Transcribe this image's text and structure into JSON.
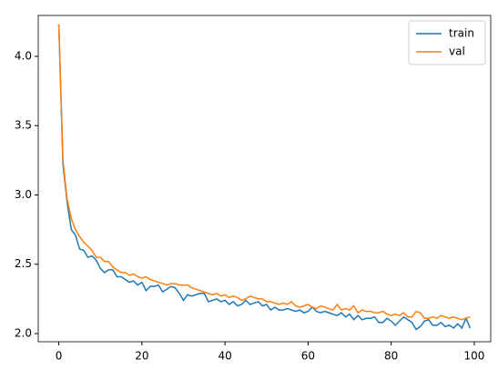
{
  "chart_data": {
    "type": "line",
    "x": [
      0,
      1,
      2,
      3,
      4,
      5,
      6,
      7,
      8,
      9,
      10,
      11,
      12,
      13,
      14,
      15,
      16,
      17,
      18,
      19,
      20,
      21,
      22,
      23,
      24,
      25,
      26,
      27,
      28,
      29,
      30,
      31,
      32,
      33,
      34,
      35,
      36,
      37,
      38,
      39,
      40,
      41,
      42,
      43,
      44,
      45,
      46,
      47,
      48,
      49,
      50,
      51,
      52,
      53,
      54,
      55,
      56,
      57,
      58,
      59,
      60,
      61,
      62,
      63,
      64,
      65,
      66,
      67,
      68,
      69,
      70,
      71,
      72,
      73,
      74,
      75,
      76,
      77,
      78,
      79,
      80,
      81,
      82,
      83,
      84,
      85,
      86,
      87,
      88,
      89,
      90,
      91,
      92,
      93,
      94,
      95,
      96,
      97,
      98,
      99
    ],
    "series": [
      {
        "name": "train",
        "color": "#1f77b4",
        "values": [
          4.23,
          3.22,
          2.95,
          2.75,
          2.71,
          2.61,
          2.6,
          2.55,
          2.56,
          2.53,
          2.47,
          2.44,
          2.46,
          2.46,
          2.41,
          2.41,
          2.39,
          2.37,
          2.38,
          2.35,
          2.37,
          2.31,
          2.34,
          2.34,
          2.35,
          2.3,
          2.32,
          2.34,
          2.33,
          2.29,
          2.24,
          2.28,
          2.27,
          2.28,
          2.29,
          2.29,
          2.23,
          2.24,
          2.25,
          2.23,
          2.24,
          2.21,
          2.23,
          2.2,
          2.21,
          2.24,
          2.21,
          2.22,
          2.23,
          2.2,
          2.21,
          2.17,
          2.19,
          2.17,
          2.17,
          2.18,
          2.17,
          2.16,
          2.17,
          2.15,
          2.16,
          2.19,
          2.16,
          2.15,
          2.16,
          2.15,
          2.14,
          2.13,
          2.15,
          2.12,
          2.14,
          2.1,
          2.13,
          2.1,
          2.11,
          2.11,
          2.12,
          2.08,
          2.08,
          2.11,
          2.09,
          2.06,
          2.09,
          2.12,
          2.1,
          2.08,
          2.03,
          2.05,
          2.09,
          2.1,
          2.06,
          2.06,
          2.08,
          2.05,
          2.06,
          2.04,
          2.07,
          2.04,
          2.11,
          2.04
        ]
      },
      {
        "name": "val",
        "color": "#ff7f0e",
        "values": [
          4.23,
          3.25,
          2.97,
          2.83,
          2.75,
          2.7,
          2.66,
          2.63,
          2.6,
          2.55,
          2.55,
          2.52,
          2.52,
          2.48,
          2.46,
          2.44,
          2.44,
          2.42,
          2.43,
          2.41,
          2.4,
          2.41,
          2.39,
          2.38,
          2.37,
          2.36,
          2.35,
          2.36,
          2.36,
          2.35,
          2.35,
          2.35,
          2.33,
          2.32,
          2.31,
          2.3,
          2.29,
          2.28,
          2.29,
          2.27,
          2.28,
          2.26,
          2.27,
          2.26,
          2.24,
          2.25,
          2.27,
          2.26,
          2.25,
          2.25,
          2.23,
          2.23,
          2.22,
          2.21,
          2.22,
          2.21,
          2.23,
          2.2,
          2.19,
          2.2,
          2.21,
          2.19,
          2.18,
          2.2,
          2.19,
          2.18,
          2.17,
          2.21,
          2.17,
          2.18,
          2.17,
          2.2,
          2.15,
          2.17,
          2.16,
          2.16,
          2.15,
          2.15,
          2.16,
          2.14,
          2.13,
          2.14,
          2.13,
          2.15,
          2.12,
          2.12,
          2.16,
          2.15,
          2.11,
          2.11,
          2.12,
          2.11,
          2.13,
          2.12,
          2.11,
          2.12,
          2.11,
          2.1,
          2.11,
          2.12
        ]
      }
    ],
    "xlim": [
      -4.95,
      103.95
    ],
    "ylim": [
      1.941,
      4.295
    ],
    "xticks": [
      0,
      20,
      40,
      60,
      80,
      100
    ],
    "yticks": [
      {
        "value": 2.0,
        "label": "2.0"
      },
      2.5,
      {
        "value": 3.0,
        "label": "3.0"
      },
      3.5,
      {
        "value": 4.0,
        "label": "4.0"
      }
    ],
    "legend": "upper right"
  }
}
